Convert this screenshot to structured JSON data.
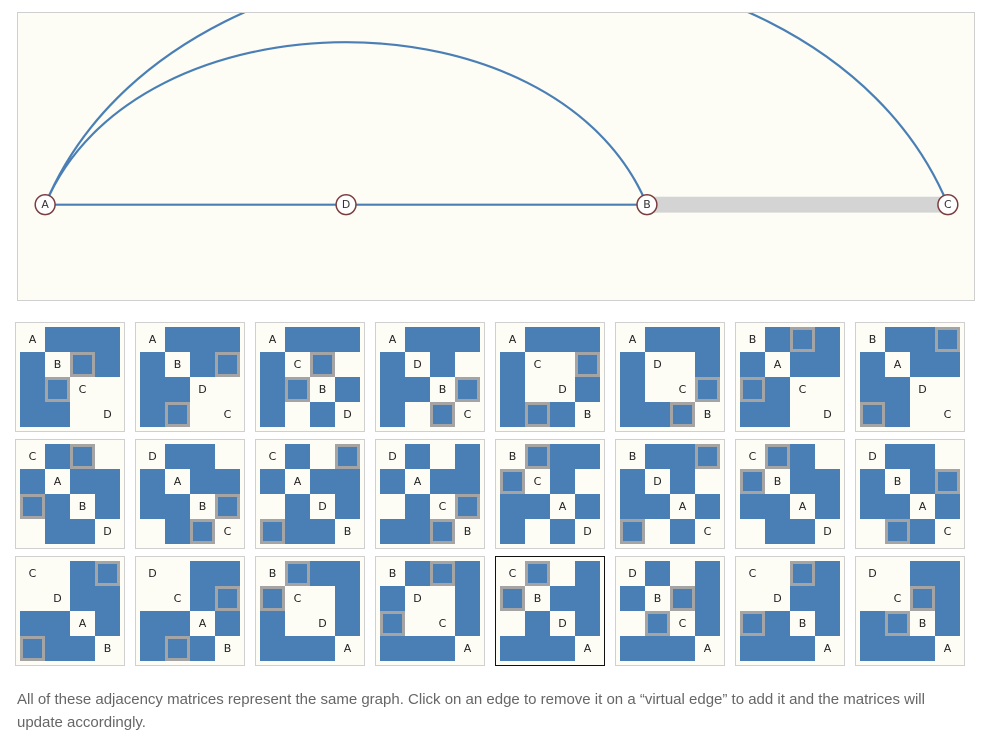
{
  "graph": {
    "nodes": [
      "A",
      "D",
      "B",
      "C"
    ],
    "edges": [
      [
        "A",
        "D"
      ],
      [
        "D",
        "B"
      ],
      [
        "A",
        "B"
      ],
      [
        "A",
        "C"
      ]
    ],
    "virtual_edges": [
      [
        "B",
        "C"
      ]
    ]
  },
  "matrices": [
    {
      "order": [
        "A",
        "B",
        "C",
        "D"
      ]
    },
    {
      "order": [
        "A",
        "B",
        "D",
        "C"
      ]
    },
    {
      "order": [
        "A",
        "C",
        "B",
        "D"
      ]
    },
    {
      "order": [
        "A",
        "D",
        "B",
        "C"
      ]
    },
    {
      "order": [
        "A",
        "C",
        "D",
        "B"
      ]
    },
    {
      "order": [
        "A",
        "D",
        "C",
        "B"
      ]
    },
    {
      "order": [
        "B",
        "A",
        "C",
        "D"
      ]
    },
    {
      "order": [
        "B",
        "A",
        "D",
        "C"
      ]
    },
    {
      "order": [
        "C",
        "A",
        "B",
        "D"
      ]
    },
    {
      "order": [
        "D",
        "A",
        "B",
        "C"
      ]
    },
    {
      "order": [
        "C",
        "A",
        "D",
        "B"
      ]
    },
    {
      "order": [
        "D",
        "A",
        "C",
        "B"
      ]
    },
    {
      "order": [
        "B",
        "C",
        "A",
        "D"
      ]
    },
    {
      "order": [
        "B",
        "D",
        "A",
        "C"
      ]
    },
    {
      "order": [
        "C",
        "B",
        "A",
        "D"
      ]
    },
    {
      "order": [
        "D",
        "B",
        "A",
        "C"
      ]
    },
    {
      "order": [
        "C",
        "D",
        "A",
        "B"
      ]
    },
    {
      "order": [
        "D",
        "C",
        "A",
        "B"
      ]
    },
    {
      "order": [
        "B",
        "C",
        "D",
        "A"
      ]
    },
    {
      "order": [
        "B",
        "D",
        "C",
        "A"
      ]
    },
    {
      "order": [
        "C",
        "B",
        "D",
        "A"
      ],
      "selected": true
    },
    {
      "order": [
        "D",
        "B",
        "C",
        "A"
      ]
    },
    {
      "order": [
        "C",
        "D",
        "B",
        "A"
      ]
    },
    {
      "order": [
        "D",
        "C",
        "B",
        "A"
      ]
    }
  ],
  "caption": "All of these adjacency matrices represent the same graph. Click on an edge to remove it on a “virtual edge” to add it and the matrices will update accordingly.",
  "colors": {
    "edge": "#4a7fb5",
    "virtual_edge": "#d4d4d4",
    "cell_border": "#a4a4a4",
    "panel": "#fdfdf5"
  }
}
